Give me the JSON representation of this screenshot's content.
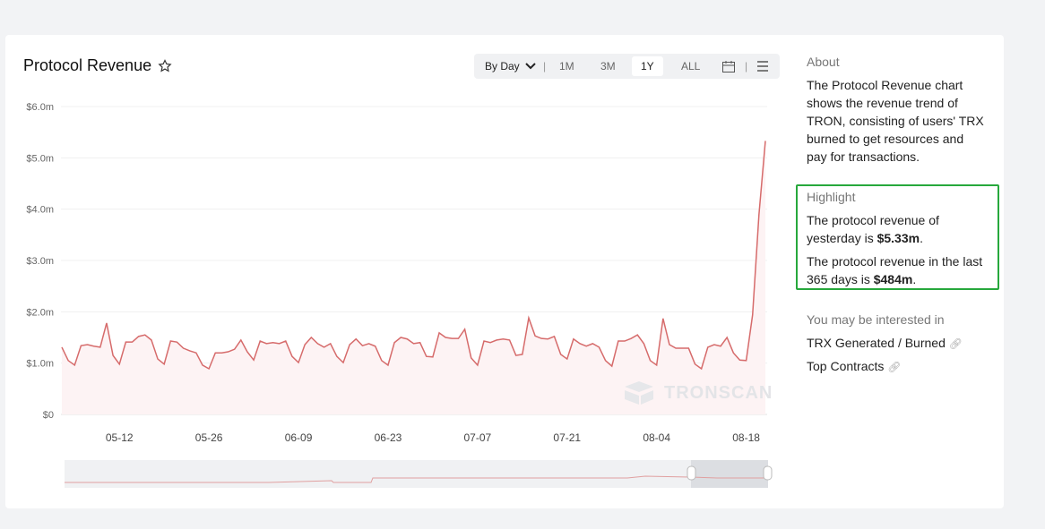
{
  "header": {
    "title": "Protocol Revenue"
  },
  "toolbar": {
    "granularity": "By Day",
    "ranges": [
      "1M",
      "3M",
      "1Y",
      "ALL"
    ],
    "selected": "1Y"
  },
  "watermark": "TRONSCAN",
  "about": {
    "heading": "About",
    "text": "The Protocol Revenue chart shows the revenue trend of TRON, consisting of users' TRX burned to get resources and pay for transactions."
  },
  "highlight": {
    "heading": "Highlight",
    "items": [
      {
        "text": "The protocol revenue of yesterday is ",
        "value": "$5.33m",
        "end": "."
      },
      {
        "text": "The protocol revenue in the last 365 days is ",
        "value": "$484m",
        "end": "."
      }
    ]
  },
  "related": {
    "heading": "You may be interested in",
    "links": [
      "TRX Generated / Burned",
      "Top Contracts"
    ]
  },
  "chart_data": {
    "type": "line",
    "color": "#d66b6b",
    "area_color": "#fdf3f4",
    "grid": true,
    "categories": [
      null,
      null,
      null,
      null,
      null,
      null,
      null,
      null,
      null,
      "05-12",
      null,
      null,
      null,
      null,
      null,
      null,
      null,
      null,
      null,
      null,
      null,
      null,
      null,
      "05-26",
      null,
      null,
      null,
      null,
      null,
      null,
      null,
      null,
      null,
      null,
      null,
      null,
      null,
      "06-09",
      null,
      null,
      null,
      null,
      null,
      null,
      null,
      null,
      null,
      null,
      null,
      null,
      null,
      "06-23",
      null,
      null,
      null,
      null,
      null,
      null,
      null,
      null,
      null,
      null,
      null,
      null,
      null,
      "07-07",
      null,
      null,
      null,
      null,
      null,
      null,
      null,
      null,
      null,
      null,
      null,
      null,
      null,
      "07-21",
      null,
      null,
      null,
      null,
      null,
      null,
      null,
      null,
      null,
      null,
      null,
      null,
      null,
      "08-04",
      null,
      null,
      null,
      null,
      null,
      null,
      null,
      null,
      null,
      null,
      null,
      null,
      null,
      "08-18",
      null,
      null,
      null
    ],
    "values": [
      1.31,
      1.05,
      0.96,
      1.34,
      1.36,
      1.33,
      1.31,
      1.78,
      1.15,
      0.98,
      1.41,
      1.41,
      1.52,
      1.55,
      1.45,
      1.08,
      0.98,
      1.43,
      1.41,
      1.29,
      1.24,
      1.2,
      0.96,
      0.89,
      1.2,
      1.2,
      1.22,
      1.27,
      1.45,
      1.22,
      1.06,
      1.43,
      1.38,
      1.4,
      1.38,
      1.43,
      1.13,
      1.01,
      1.36,
      1.5,
      1.38,
      1.31,
      1.38,
      1.13,
      1.01,
      1.36,
      1.47,
      1.34,
      1.38,
      1.33,
      1.05,
      0.96,
      1.4,
      1.5,
      1.47,
      1.38,
      1.4,
      1.13,
      1.12,
      1.59,
      1.5,
      1.48,
      1.48,
      1.66,
      1.1,
      0.96,
      1.43,
      1.4,
      1.45,
      1.47,
      1.45,
      1.15,
      1.17,
      1.88,
      1.53,
      1.48,
      1.47,
      1.52,
      1.17,
      1.08,
      1.47,
      1.38,
      1.33,
      1.38,
      1.31,
      1.05,
      0.94,
      1.43,
      1.43,
      1.48,
      1.55,
      1.38,
      1.05,
      0.96,
      1.87,
      1.36,
      1.29,
      1.29,
      1.29,
      0.98,
      0.89,
      1.31,
      1.36,
      1.33,
      1.5,
      1.2,
      1.06,
      1.05,
      1.94,
      3.9,
      5.33
    ],
    "ylim": [
      0,
      6
    ],
    "yticks": [
      {
        "value": 0,
        "label": "$0"
      },
      {
        "value": 1,
        "label": "$1.0m"
      },
      {
        "value": 2,
        "label": "$2.0m"
      },
      {
        "value": 3,
        "label": "$3.0m"
      },
      {
        "value": 4,
        "label": "$4.0m"
      },
      {
        "value": 5,
        "label": "$5.0m"
      },
      {
        "value": 6,
        "label": "$6.0m"
      }
    ]
  }
}
